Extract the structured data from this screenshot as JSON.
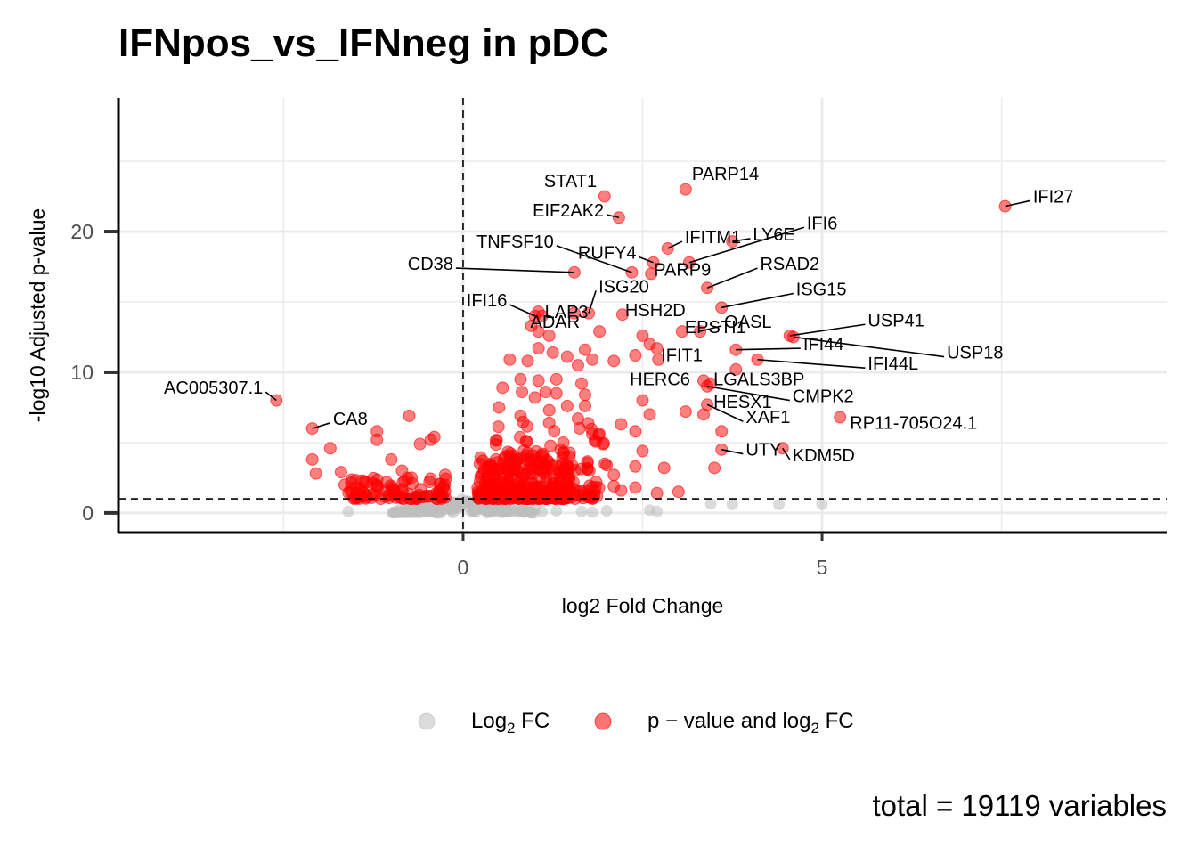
{
  "title": "IFNpos_vs_IFNneg in pDC",
  "caption": "total = 19119 variables",
  "colors": {
    "ns": "#bdbdbd",
    "sig": "#ff0000",
    "grid": "#ebebeb",
    "axis": "#000000"
  },
  "chart_data": {
    "type": "scatter",
    "title": "IFNpos_vs_IFNneg in pDC",
    "xlabel": "log2 Fold Change",
    "ylabel": "-log10 Adjusted p-value",
    "xlim": [
      -4.8,
      9.8
    ],
    "ylim": [
      -1.4,
      29.5
    ],
    "xticks": [
      0,
      5
    ],
    "yticks": [
      0,
      10,
      20
    ],
    "grid": true,
    "legend_position": "bottom",
    "cutoffs": {
      "log2fc": 0,
      "neglog10_padj": 1
    },
    "legend": [
      {
        "key": "ns",
        "label_main": "Log",
        "label_sub": "2",
        "label_tail": " FC"
      },
      {
        "key": "sig",
        "label_main": "p − value and log",
        "label_sub": "2",
        "label_tail": " FC"
      }
    ],
    "labeled_genes": [
      {
        "gene": "IFI27",
        "x": 7.55,
        "y": 21.8,
        "lx": 7.9,
        "ly": 22.2
      },
      {
        "gene": "PARP14",
        "x": 3.1,
        "y": 23.0,
        "lx": 3.15,
        "ly": 23.8
      },
      {
        "gene": "STAT1",
        "x": 1.97,
        "y": 22.5,
        "lx": 1.9,
        "ly": 23.3
      },
      {
        "gene": "EIF2AK2",
        "x": 2.17,
        "y": 21.0,
        "lx": 2.0,
        "ly": 21.2
      },
      {
        "gene": "IFITM1",
        "x": 2.85,
        "y": 18.8,
        "lx": 3.05,
        "ly": 19.3
      },
      {
        "gene": "LY6E",
        "x": 3.75,
        "y": 19.3,
        "lx": 4.0,
        "ly": 19.5
      },
      {
        "gene": "IFI6",
        "x": 3.15,
        "y": 17.8,
        "lx": 4.75,
        "ly": 20.3
      },
      {
        "gene": "TNFSF10",
        "x": 2.35,
        "y": 17.1,
        "lx": 1.3,
        "ly": 19.0
      },
      {
        "gene": "RUFY4",
        "x": 2.65,
        "y": 17.8,
        "lx": 2.45,
        "ly": 18.2
      },
      {
        "gene": "RSAD2",
        "x": 3.4,
        "y": 16.0,
        "lx": 4.1,
        "ly": 17.4
      },
      {
        "gene": "CD38",
        "x": 1.55,
        "y": 17.1,
        "lx": -0.1,
        "ly": 17.4
      },
      {
        "gene": "PARP9",
        "x": 2.62,
        "y": 17.0,
        "lx": 2.62,
        "ly": 17.0
      },
      {
        "gene": "ISG20",
        "x": 1.75,
        "y": 14.2,
        "lx": 1.85,
        "ly": 15.8
      },
      {
        "gene": "ISG15",
        "x": 3.6,
        "y": 14.6,
        "lx": 4.6,
        "ly": 15.6
      },
      {
        "gene": "IFI16",
        "x": 1.0,
        "y": 14.0,
        "lx": 0.65,
        "ly": 14.8
      },
      {
        "gene": "LAP3",
        "x": 1.1,
        "y": 14.0,
        "lx": 1.1,
        "ly": 14.0
      },
      {
        "gene": "HSH2D",
        "x": 2.22,
        "y": 14.1,
        "lx": 2.22,
        "ly": 14.1
      },
      {
        "gene": "EPSTI1",
        "x": 3.05,
        "y": 12.9,
        "lx": 3.05,
        "ly": 12.9
      },
      {
        "gene": "OASL",
        "x": 3.3,
        "y": 12.9,
        "lx": 3.6,
        "ly": 13.3
      },
      {
        "gene": "ADAR",
        "x": 0.95,
        "y": 13.3,
        "lx": 0.9,
        "ly": 13.3
      },
      {
        "gene": "USP41",
        "x": 4.55,
        "y": 12.6,
        "lx": 5.6,
        "ly": 13.4
      },
      {
        "gene": "IFIT1",
        "x": 2.72,
        "y": 10.9,
        "lx": 2.72,
        "ly": 10.9
      },
      {
        "gene": "IFI44",
        "x": 3.8,
        "y": 11.6,
        "lx": 4.7,
        "ly": 11.7
      },
      {
        "gene": "USP18",
        "x": 4.6,
        "y": 12.5,
        "lx": 6.7,
        "ly": 11.1
      },
      {
        "gene": "IFI44L",
        "x": 4.1,
        "y": 10.9,
        "lx": 5.6,
        "ly": 10.3
      },
      {
        "gene": "AC005307.1",
        "x": -2.6,
        "y": 8.0,
        "lx": -2.75,
        "ly": 8.6
      },
      {
        "gene": "HERC6",
        "x": 3.35,
        "y": 9.4,
        "lx": 3.2,
        "ly": 9.2
      },
      {
        "gene": "LGALS3BP",
        "x": 3.45,
        "y": 9.2,
        "lx": 3.45,
        "ly": 9.2
      },
      {
        "gene": "CMPK2",
        "x": 3.4,
        "y": 9.0,
        "lx": 4.55,
        "ly": 8.0
      },
      {
        "gene": "CA8",
        "x": -2.1,
        "y": 6.0,
        "lx": -1.85,
        "ly": 6.4
      },
      {
        "gene": "RP11-705O24.1",
        "x": 5.25,
        "y": 6.8,
        "lx": 5.35,
        "ly": 6.1
      },
      {
        "gene": "HESX1",
        "x": 3.35,
        "y": 7.0,
        "lx": 3.45,
        "ly": 7.6
      },
      {
        "gene": "XAF1",
        "x": 3.4,
        "y": 7.7,
        "lx": 3.9,
        "ly": 6.5
      },
      {
        "gene": "UTY",
        "x": 3.6,
        "y": 4.5,
        "lx": 3.9,
        "ly": 4.2
      },
      {
        "gene": "KDM5D",
        "x": 4.45,
        "y": 4.6,
        "lx": 4.55,
        "ly": 3.8
      }
    ],
    "sig_points": [
      [
        3.0,
        1.5
      ],
      [
        2.4,
        1.8
      ],
      [
        1.55,
        1.7
      ],
      [
        3.8,
        10.2
      ],
      [
        3.5,
        3.2
      ],
      [
        2.8,
        3.2
      ],
      [
        2.6,
        7.0
      ],
      [
        3.1,
        7.2
      ],
      [
        2.5,
        8.0
      ],
      [
        2.5,
        4.4
      ],
      [
        2.4,
        3.3
      ],
      [
        2.4,
        5.8
      ],
      [
        2.2,
        6.3
      ],
      [
        2.1,
        2.7
      ],
      [
        2.0,
        3.4
      ],
      [
        2.1,
        1.9
      ],
      [
        2.6,
        12.0
      ],
      [
        2.7,
        11.7
      ],
      [
        2.5,
        12.6
      ],
      [
        2.4,
        11.2
      ],
      [
        1.9,
        12.9
      ],
      [
        2.1,
        10.8
      ],
      [
        1.8,
        10.9
      ],
      [
        1.7,
        11.6
      ],
      [
        1.6,
        10.5
      ],
      [
        1.45,
        11.1
      ],
      [
        1.25,
        11.4
      ],
      [
        0.65,
        10.9
      ],
      [
        0.9,
        10.8
      ],
      [
        1.05,
        11.7
      ],
      [
        1.2,
        12.6
      ],
      [
        1.55,
        14.2
      ],
      [
        1.05,
        12.9
      ],
      [
        1.05,
        14.3
      ],
      [
        0.55,
        8.9
      ],
      [
        0.82,
        8.6
      ],
      [
        1.0,
        8.2
      ],
      [
        1.15,
        8.6
      ],
      [
        1.3,
        8.5
      ],
      [
        1.45,
        7.6
      ],
      [
        1.7,
        7.6
      ],
      [
        1.7,
        8.4
      ],
      [
        1.65,
        9.2
      ],
      [
        1.3,
        9.5
      ],
      [
        1.05,
        9.4
      ],
      [
        0.8,
        9.5
      ],
      [
        1.2,
        7.3
      ],
      [
        1.6,
        6.7
      ],
      [
        0.8,
        6.9
      ],
      [
        0.5,
        7.5
      ],
      [
        -0.75,
        6.9
      ],
      [
        -0.6,
        4.9
      ],
      [
        -0.45,
        5.2
      ],
      [
        -0.4,
        5.4
      ],
      [
        -1.2,
        5.8
      ],
      [
        -1.2,
        5.2
      ],
      [
        -1.85,
        4.6
      ],
      [
        -2.1,
        3.8
      ],
      [
        -2.05,
        2.8
      ],
      [
        -1.7,
        2.9
      ],
      [
        -1.65,
        2.0
      ],
      [
        -1.5,
        1.8
      ],
      [
        -1.4,
        2.3
      ],
      [
        -1.0,
        3.8
      ],
      [
        -0.85,
        3.0
      ],
      [
        -0.25,
        2.7
      ],
      [
        2.2,
        1.6
      ],
      [
        2.7,
        1.4
      ],
      [
        3.6,
        5.8
      ],
      [
        1.4,
        4.3
      ],
      [
        1.2,
        6.4
      ],
      [
        1.8,
        5.6
      ]
    ],
    "sig_cloud": {
      "regions": [
        {
          "x": [
            0.2,
            1.5
          ],
          "y": [
            1.0,
            4.5
          ],
          "n": 240
        },
        {
          "x": [
            0.3,
            1.9
          ],
          "y": [
            1.0,
            2.3
          ],
          "n": 110
        },
        {
          "x": [
            -1.6,
            -0.2
          ],
          "y": [
            1.0,
            2.6
          ],
          "n": 95
        },
        {
          "x": [
            0.4,
            2.0
          ],
          "y": [
            3.0,
            6.5
          ],
          "n": 55
        }
      ]
    },
    "ns_points": [
      [
        -1.6,
        0.1
      ],
      [
        -0.9,
        0.2
      ],
      [
        -0.6,
        0.1
      ],
      [
        -0.3,
        0.2
      ],
      [
        0.6,
        0.1
      ],
      [
        0.9,
        0.2
      ],
      [
        1.1,
        0.1
      ],
      [
        1.3,
        0.15
      ],
      [
        1.65,
        0.1
      ],
      [
        1.8,
        0.05
      ],
      [
        2.0,
        0.15
      ],
      [
        2.6,
        0.2
      ],
      [
        2.7,
        0.1
      ],
      [
        3.45,
        0.65
      ],
      [
        3.75,
        0.6
      ],
      [
        4.4,
        0.6
      ],
      [
        5.0,
        0.6
      ],
      [
        0.8,
        0.3
      ],
      [
        1.0,
        0.25
      ],
      [
        -0.1,
        0.4
      ],
      [
        0.2,
        0.35
      ],
      [
        0.4,
        0.5
      ],
      [
        -0.4,
        0.5
      ]
    ],
    "ns_cloud": {
      "x": [
        -1.0,
        1.0
      ],
      "y": [
        0.0,
        1.0
      ],
      "n": 160
    }
  }
}
